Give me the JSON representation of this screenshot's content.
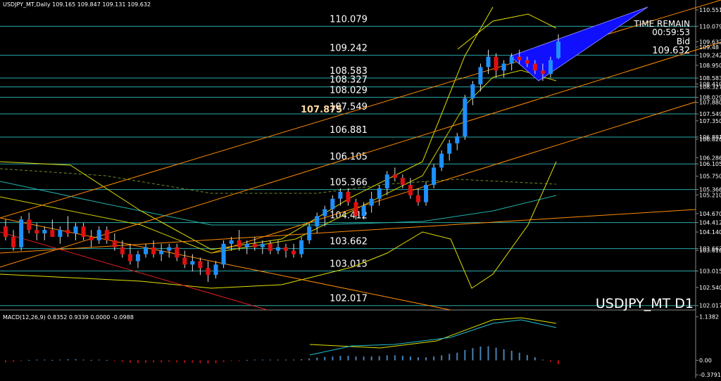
{
  "header": {
    "symbol_line": "USDJPY_MT,Daily  109.165 109.847 109.131 109.632"
  },
  "overlay": {
    "timer_title": "TIME REMAIN",
    "timer": "00:59:53",
    "bid_label": "Bid",
    "bid": "109.632",
    "footer": "USDJPY_MT D1",
    "pivot": "107.875"
  },
  "chart": {
    "ylim": [
      101.889,
      110.836
    ],
    "yticks": [
      110.551,
      110.079,
      109.632,
      109.48,
      109.242,
      {
        "value": 108.95,
        "label": "108.950"
      },
      108.583,
      {
        "value": 108.41,
        "label": "108.410"
      },
      108.327,
      108.029,
      {
        "value": 107.88,
        "label": "107.880"
      },
      107.549,
      {
        "value": 107.35,
        "label": "107.350"
      },
      106.881,
      {
        "value": 106.82,
        "label": "106.820"
      },
      106.286,
      106.105,
      {
        "value": 105.75,
        "label": "105.750"
      },
      105.366,
      {
        "value": 105.21,
        "label": "105.210"
      },
      {
        "value": 104.67,
        "label": "104.670"
      },
      104.412,
      {
        "value": 104.14,
        "label": "104.140"
      },
      103.662,
      {
        "value": 103.61,
        "label": "103.610"
      },
      103.015,
      {
        "value": 102.54,
        "label": "102.540"
      },
      102.017
    ],
    "levels": [
      110.079,
      109.242,
      108.583,
      108.327,
      108.029,
      107.549,
      106.881,
      106.105,
      105.366,
      104.412,
      103.662,
      103.015,
      102.017
    ],
    "candles": [
      [
        104.3,
        104.5,
        103.9,
        104.0
      ],
      [
        104.0,
        104.2,
        103.6,
        103.7
      ],
      [
        103.7,
        104.6,
        103.6,
        104.5
      ],
      [
        104.5,
        104.7,
        104.1,
        104.2
      ],
      [
        104.2,
        104.4,
        103.9,
        104.1
      ],
      [
        104.1,
        104.3,
        103.9,
        104.2
      ],
      [
        104.2,
        104.5,
        104.0,
        104.0
      ],
      [
        104.0,
        104.3,
        103.8,
        104.2
      ],
      [
        104.2,
        104.6,
        104.0,
        104.1
      ],
      [
        104.1,
        104.4,
        103.9,
        104.3
      ],
      [
        104.3,
        104.4,
        103.9,
        104.0
      ],
      [
        104.0,
        104.2,
        103.7,
        103.9
      ],
      [
        103.9,
        104.3,
        103.8,
        104.2
      ],
      [
        104.2,
        104.3,
        103.8,
        103.9
      ],
      [
        103.9,
        104.1,
        103.6,
        103.7
      ],
      [
        103.7,
        103.9,
        103.4,
        103.5
      ],
      [
        103.5,
        103.8,
        103.2,
        103.3
      ],
      [
        103.3,
        103.6,
        103.1,
        103.5
      ],
      [
        103.5,
        103.8,
        103.4,
        103.7
      ],
      [
        103.7,
        103.9,
        103.4,
        103.5
      ],
      [
        103.5,
        103.8,
        103.3,
        103.6
      ],
      [
        103.6,
        103.8,
        103.4,
        103.7
      ],
      [
        103.7,
        103.8,
        103.3,
        103.4
      ],
      [
        103.4,
        103.6,
        103.1,
        103.2
      ],
      [
        103.2,
        103.5,
        103.0,
        103.3
      ],
      [
        103.3,
        103.4,
        102.9,
        103.1
      ],
      [
        103.1,
        103.3,
        102.7,
        102.9
      ],
      [
        102.9,
        103.3,
        102.8,
        103.2
      ],
      [
        103.2,
        103.9,
        103.1,
        103.8
      ],
      [
        103.8,
        104.0,
        103.6,
        103.9
      ],
      [
        103.9,
        104.2,
        103.6,
        103.7
      ],
      [
        103.7,
        103.9,
        103.5,
        103.8
      ],
      [
        103.8,
        104.0,
        103.6,
        103.7
      ],
      [
        103.7,
        103.9,
        103.5,
        103.8
      ],
      [
        103.8,
        103.9,
        103.5,
        103.6
      ],
      [
        103.6,
        103.9,
        103.5,
        103.7
      ],
      [
        103.7,
        103.8,
        103.4,
        103.6
      ],
      [
        103.6,
        103.8,
        103.4,
        103.5
      ],
      [
        103.5,
        104.0,
        103.4,
        103.9
      ],
      [
        103.9,
        104.4,
        103.8,
        104.3
      ],
      [
        104.3,
        104.7,
        104.1,
        104.6
      ],
      [
        104.6,
        104.9,
        104.3,
        104.8
      ],
      [
        104.8,
        105.2,
        104.6,
        105.1
      ],
      [
        105.1,
        105.4,
        104.9,
        105.3
      ],
      [
        105.3,
        105.4,
        104.9,
        105.0
      ],
      [
        105.0,
        105.1,
        104.5,
        104.6
      ],
      [
        104.6,
        105.0,
        104.5,
        104.9
      ],
      [
        104.9,
        105.3,
        104.7,
        105.1
      ],
      [
        105.1,
        105.5,
        104.9,
        105.4
      ],
      [
        105.4,
        105.9,
        105.2,
        105.8
      ],
      [
        105.8,
        106.0,
        105.6,
        105.7
      ],
      [
        105.7,
        105.8,
        105.4,
        105.5
      ],
      [
        105.5,
        105.7,
        105.1,
        105.2
      ],
      [
        105.2,
        105.4,
        104.9,
        105.0
      ],
      [
        105.0,
        105.6,
        104.9,
        105.5
      ],
      [
        105.5,
        106.1,
        105.4,
        106.0
      ],
      [
        106.0,
        106.5,
        105.9,
        106.4
      ],
      [
        106.4,
        106.8,
        106.2,
        106.7
      ],
      [
        106.7,
        107.0,
        106.5,
        106.9
      ],
      [
        106.9,
        108.1,
        106.8,
        108.0
      ],
      [
        108.0,
        108.5,
        107.8,
        108.4
      ],
      [
        108.4,
        109.0,
        108.2,
        108.9
      ],
      [
        108.9,
        109.4,
        108.7,
        109.2
      ],
      [
        109.2,
        109.3,
        108.6,
        108.8
      ],
      [
        108.8,
        109.1,
        108.6,
        109.0
      ],
      [
        109.0,
        109.3,
        108.8,
        109.2
      ],
      [
        109.2,
        109.4,
        109.0,
        109.1
      ],
      [
        109.1,
        109.2,
        108.9,
        109.0
      ],
      [
        109.0,
        109.1,
        108.7,
        108.8
      ],
      [
        108.8,
        109.0,
        108.5,
        108.7
      ],
      [
        108.7,
        109.2,
        108.6,
        109.1
      ],
      [
        109.165,
        109.847,
        109.131,
        109.632
      ]
    ]
  },
  "macd": {
    "label": "MACD(12,26,9) 0.8352 0.9339 0.0000 -0.0988",
    "ylim": [
      -0.467,
      1.243
    ],
    "yticks": [
      1.1382,
      {
        "value": 0,
        "label": "0.00"
      },
      -0.3791
    ],
    "histogram": [
      -0.05,
      -0.04,
      -0.02,
      0.01,
      0.02,
      0.02,
      0.01,
      0.02,
      0.03,
      0.03,
      0.02,
      0.01,
      0.02,
      0.01,
      -0.02,
      -0.04,
      -0.06,
      -0.07,
      -0.06,
      -0.05,
      -0.05,
      -0.04,
      -0.05,
      -0.06,
      -0.06,
      -0.07,
      -0.08,
      -0.07,
      -0.04,
      -0.02,
      -0.01,
      0.01,
      0.02,
      0.02,
      0.02,
      0.02,
      0.02,
      0.02,
      0.03,
      0.05,
      0.07,
      0.09,
      0.1,
      0.12,
      0.12,
      0.1,
      0.1,
      0.1,
      0.11,
      0.13,
      0.13,
      0.12,
      0.1,
      0.08,
      0.08,
      0.1,
      0.13,
      0.17,
      0.2,
      0.27,
      0.32,
      0.36,
      0.37,
      0.33,
      0.29,
      0.25,
      0.2,
      0.14,
      0.08,
      0.02,
      -0.04,
      -0.0988
    ]
  }
}
